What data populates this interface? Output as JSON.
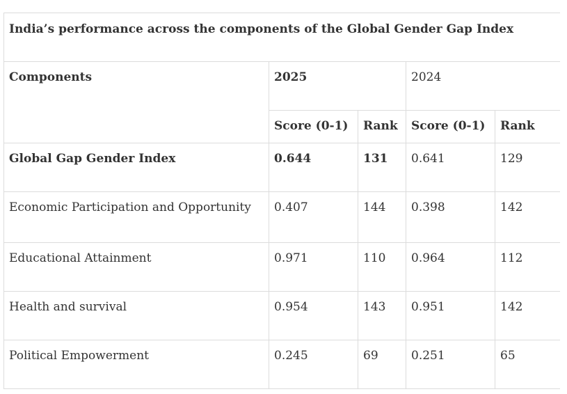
{
  "table": {
    "title": "India’s performance across the components of the Global Gender Gap Index",
    "header": {
      "components_label": "Components",
      "year_2025": "2025",
      "year_2024": "2024"
    },
    "subheader": {
      "score_2025": "Score (0-1)",
      "rank_2025": "Rank",
      "score_2024": "Score (0-1)",
      "rank_2024": "Rank"
    },
    "rows": [
      {
        "component": "Global Gap Gender Index",
        "score_2025": "0.644",
        "rank_2025": "131",
        "score_2024": "0.641",
        "rank_2024": "129"
      },
      {
        "component": "Economic Participation and Opportunity",
        "score_2025": "0.407",
        "rank_2025": "144",
        "score_2024": "0.398",
        "rank_2024": "142"
      },
      {
        "component": "Educational Attainment",
        "score_2025": "0.971",
        "rank_2025": "110",
        "score_2024": "0.964",
        "rank_2024": "112"
      },
      {
        "component": "Health and survival",
        "score_2025": "0.954",
        "rank_2025": "143",
        "score_2024": "0.951",
        "rank_2024": "142"
      },
      {
        "component": "Political Empowerment",
        "score_2025": "0.245",
        "rank_2025": "69",
        "score_2024": "0.251",
        "rank_2024": "65"
      }
    ]
  }
}
